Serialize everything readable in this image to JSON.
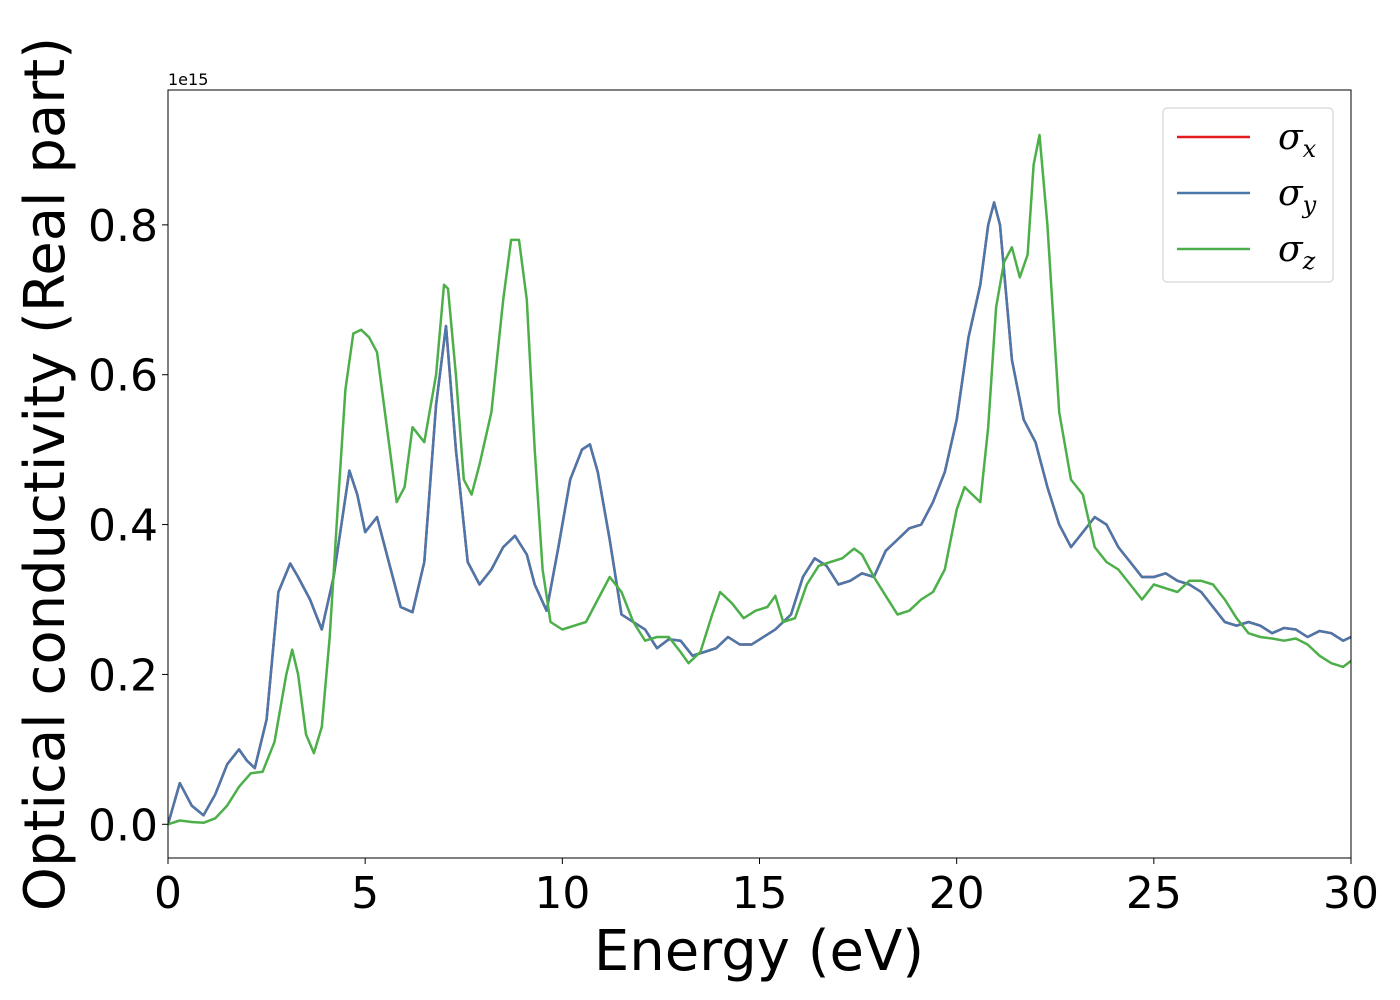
{
  "chart_data": {
    "type": "line",
    "title": "",
    "xlabel": "Energy (eV)",
    "ylabel": "Optical conductivity (Real part)",
    "y_offset_label": "1e15",
    "xlim": [
      0,
      30
    ],
    "ylim": [
      -0.045,
      0.98
    ],
    "xticks": [
      0,
      5,
      10,
      15,
      20,
      25,
      30
    ],
    "xtick_labels": [
      "0",
      "5",
      "10",
      "15",
      "20",
      "25",
      "30"
    ],
    "yticks": [
      0.0,
      0.2,
      0.4,
      0.6,
      0.8
    ],
    "ytick_labels": [
      "0.0",
      "0.2",
      "0.4",
      "0.6",
      "0.8"
    ],
    "grid": false,
    "legend_position": "top-right",
    "series": [
      {
        "name": "σx",
        "symbol": "σ",
        "subscript": "x",
        "color": "#e41a1c",
        "x": [
          0,
          0.3,
          0.6,
          0.9,
          1.2,
          1.5,
          1.8,
          2.0,
          2.2,
          2.5,
          2.8,
          3.1,
          3.3,
          3.6,
          3.9,
          4.2,
          4.6,
          4.8,
          5.0,
          5.3,
          5.6,
          5.9,
          6.2,
          6.5,
          6.8,
          7.05,
          7.3,
          7.6,
          7.9,
          8.2,
          8.5,
          8.8,
          9.1,
          9.3,
          9.6,
          9.9,
          10.2,
          10.5,
          10.7,
          10.9,
          11.2,
          11.5,
          11.8,
          12.1,
          12.4,
          12.7,
          13.0,
          13.3,
          13.6,
          13.9,
          14.2,
          14.5,
          14.8,
          15.1,
          15.4,
          15.8,
          16.1,
          16.4,
          16.7,
          17.0,
          17.3,
          17.6,
          17.9,
          18.2,
          18.5,
          18.8,
          19.1,
          19.4,
          19.7,
          20.0,
          20.3,
          20.6,
          20.8,
          20.95,
          21.1,
          21.4,
          21.7,
          22.0,
          22.3,
          22.6,
          22.9,
          23.2,
          23.5,
          23.8,
          24.1,
          24.4,
          24.7,
          25.0,
          25.3,
          25.6,
          25.9,
          26.2,
          26.5,
          26.8,
          27.1,
          27.4,
          27.7,
          28.0,
          28.3,
          28.6,
          28.9,
          29.2,
          29.5,
          29.8,
          30.0
        ],
        "y": [
          0.0,
          0.055,
          0.025,
          0.012,
          0.04,
          0.08,
          0.1,
          0.085,
          0.075,
          0.14,
          0.31,
          0.348,
          0.33,
          0.3,
          0.26,
          0.33,
          0.472,
          0.44,
          0.39,
          0.41,
          0.35,
          0.29,
          0.283,
          0.35,
          0.56,
          0.665,
          0.5,
          0.35,
          0.32,
          0.34,
          0.37,
          0.385,
          0.36,
          0.32,
          0.285,
          0.37,
          0.46,
          0.5,
          0.507,
          0.47,
          0.38,
          0.28,
          0.27,
          0.26,
          0.235,
          0.247,
          0.245,
          0.225,
          0.23,
          0.235,
          0.25,
          0.24,
          0.24,
          0.25,
          0.26,
          0.28,
          0.33,
          0.355,
          0.345,
          0.32,
          0.325,
          0.335,
          0.33,
          0.365,
          0.38,
          0.395,
          0.4,
          0.43,
          0.47,
          0.54,
          0.65,
          0.72,
          0.8,
          0.83,
          0.8,
          0.62,
          0.54,
          0.51,
          0.45,
          0.4,
          0.37,
          0.39,
          0.41,
          0.4,
          0.37,
          0.35,
          0.33,
          0.33,
          0.335,
          0.325,
          0.32,
          0.31,
          0.29,
          0.27,
          0.265,
          0.27,
          0.265,
          0.255,
          0.262,
          0.26,
          0.25,
          0.258,
          0.255,
          0.245,
          0.25
        ]
      },
      {
        "name": "σy",
        "symbol": "σ",
        "subscript": "y",
        "color": "#4a78ab",
        "x": [
          0,
          0.3,
          0.6,
          0.9,
          1.2,
          1.5,
          1.8,
          2.0,
          2.2,
          2.5,
          2.8,
          3.1,
          3.3,
          3.6,
          3.9,
          4.2,
          4.6,
          4.8,
          5.0,
          5.3,
          5.6,
          5.9,
          6.2,
          6.5,
          6.8,
          7.05,
          7.3,
          7.6,
          7.9,
          8.2,
          8.5,
          8.8,
          9.1,
          9.3,
          9.6,
          9.9,
          10.2,
          10.5,
          10.7,
          10.9,
          11.2,
          11.5,
          11.8,
          12.1,
          12.4,
          12.7,
          13.0,
          13.3,
          13.6,
          13.9,
          14.2,
          14.5,
          14.8,
          15.1,
          15.4,
          15.8,
          16.1,
          16.4,
          16.7,
          17.0,
          17.3,
          17.6,
          17.9,
          18.2,
          18.5,
          18.8,
          19.1,
          19.4,
          19.7,
          20.0,
          20.3,
          20.6,
          20.8,
          20.95,
          21.1,
          21.4,
          21.7,
          22.0,
          22.3,
          22.6,
          22.9,
          23.2,
          23.5,
          23.8,
          24.1,
          24.4,
          24.7,
          25.0,
          25.3,
          25.6,
          25.9,
          26.2,
          26.5,
          26.8,
          27.1,
          27.4,
          27.7,
          28.0,
          28.3,
          28.6,
          28.9,
          29.2,
          29.5,
          29.8,
          30.0
        ],
        "y": [
          0.0,
          0.055,
          0.025,
          0.012,
          0.04,
          0.08,
          0.1,
          0.085,
          0.075,
          0.14,
          0.31,
          0.348,
          0.33,
          0.3,
          0.26,
          0.33,
          0.472,
          0.44,
          0.39,
          0.41,
          0.35,
          0.29,
          0.283,
          0.35,
          0.56,
          0.665,
          0.5,
          0.35,
          0.32,
          0.34,
          0.37,
          0.385,
          0.36,
          0.32,
          0.285,
          0.37,
          0.46,
          0.5,
          0.507,
          0.47,
          0.38,
          0.28,
          0.27,
          0.26,
          0.235,
          0.247,
          0.245,
          0.225,
          0.23,
          0.235,
          0.25,
          0.24,
          0.24,
          0.25,
          0.26,
          0.28,
          0.33,
          0.355,
          0.345,
          0.32,
          0.325,
          0.335,
          0.33,
          0.365,
          0.38,
          0.395,
          0.4,
          0.43,
          0.47,
          0.54,
          0.65,
          0.72,
          0.8,
          0.83,
          0.8,
          0.62,
          0.54,
          0.51,
          0.45,
          0.4,
          0.37,
          0.39,
          0.41,
          0.4,
          0.37,
          0.35,
          0.33,
          0.33,
          0.335,
          0.325,
          0.32,
          0.31,
          0.29,
          0.27,
          0.265,
          0.27,
          0.265,
          0.255,
          0.262,
          0.26,
          0.25,
          0.258,
          0.255,
          0.245,
          0.25
        ]
      },
      {
        "name": "σz",
        "symbol": "σ",
        "subscript": "z",
        "color": "#4daf4a",
        "x": [
          0,
          0.3,
          0.6,
          0.9,
          1.2,
          1.5,
          1.8,
          2.1,
          2.4,
          2.7,
          3.0,
          3.15,
          3.3,
          3.5,
          3.7,
          3.9,
          4.1,
          4.3,
          4.5,
          4.7,
          4.9,
          5.1,
          5.3,
          5.5,
          5.8,
          6.0,
          6.2,
          6.5,
          6.8,
          7.0,
          7.1,
          7.3,
          7.5,
          7.7,
          7.9,
          8.2,
          8.5,
          8.7,
          8.9,
          9.1,
          9.3,
          9.5,
          9.7,
          10.0,
          10.3,
          10.6,
          10.9,
          11.2,
          11.5,
          11.8,
          12.1,
          12.4,
          12.7,
          13.0,
          13.2,
          13.5,
          13.8,
          14.0,
          14.3,
          14.6,
          14.9,
          15.2,
          15.4,
          15.6,
          15.9,
          16.2,
          16.5,
          16.8,
          17.1,
          17.4,
          17.6,
          17.9,
          18.2,
          18.5,
          18.8,
          19.1,
          19.4,
          19.7,
          20.0,
          20.2,
          20.4,
          20.6,
          20.8,
          21.0,
          21.2,
          21.4,
          21.6,
          21.8,
          21.95,
          22.1,
          22.3,
          22.6,
          22.9,
          23.2,
          23.5,
          23.8,
          24.1,
          24.4,
          24.7,
          25.0,
          25.3,
          25.6,
          25.9,
          26.2,
          26.5,
          26.8,
          27.1,
          27.4,
          27.7,
          28.0,
          28.3,
          28.6,
          28.9,
          29.2,
          29.5,
          29.8,
          30.0
        ],
        "y": [
          0.0,
          0.005,
          0.003,
          0.002,
          0.008,
          0.025,
          0.05,
          0.068,
          0.07,
          0.11,
          0.2,
          0.233,
          0.2,
          0.12,
          0.095,
          0.13,
          0.25,
          0.42,
          0.58,
          0.655,
          0.66,
          0.65,
          0.63,
          0.55,
          0.43,
          0.45,
          0.53,
          0.51,
          0.6,
          0.72,
          0.715,
          0.6,
          0.46,
          0.44,
          0.48,
          0.55,
          0.7,
          0.78,
          0.78,
          0.7,
          0.5,
          0.34,
          0.27,
          0.26,
          0.265,
          0.27,
          0.3,
          0.33,
          0.31,
          0.27,
          0.245,
          0.25,
          0.25,
          0.23,
          0.215,
          0.23,
          0.28,
          0.31,
          0.295,
          0.275,
          0.285,
          0.29,
          0.305,
          0.27,
          0.275,
          0.32,
          0.345,
          0.35,
          0.355,
          0.368,
          0.36,
          0.33,
          0.305,
          0.28,
          0.285,
          0.3,
          0.31,
          0.34,
          0.42,
          0.45,
          0.44,
          0.43,
          0.53,
          0.69,
          0.75,
          0.77,
          0.73,
          0.76,
          0.88,
          0.92,
          0.8,
          0.55,
          0.46,
          0.44,
          0.37,
          0.35,
          0.34,
          0.32,
          0.3,
          0.32,
          0.315,
          0.31,
          0.325,
          0.325,
          0.32,
          0.3,
          0.275,
          0.255,
          0.25,
          0.248,
          0.245,
          0.248,
          0.24,
          0.225,
          0.215,
          0.21,
          0.218
        ]
      }
    ]
  }
}
